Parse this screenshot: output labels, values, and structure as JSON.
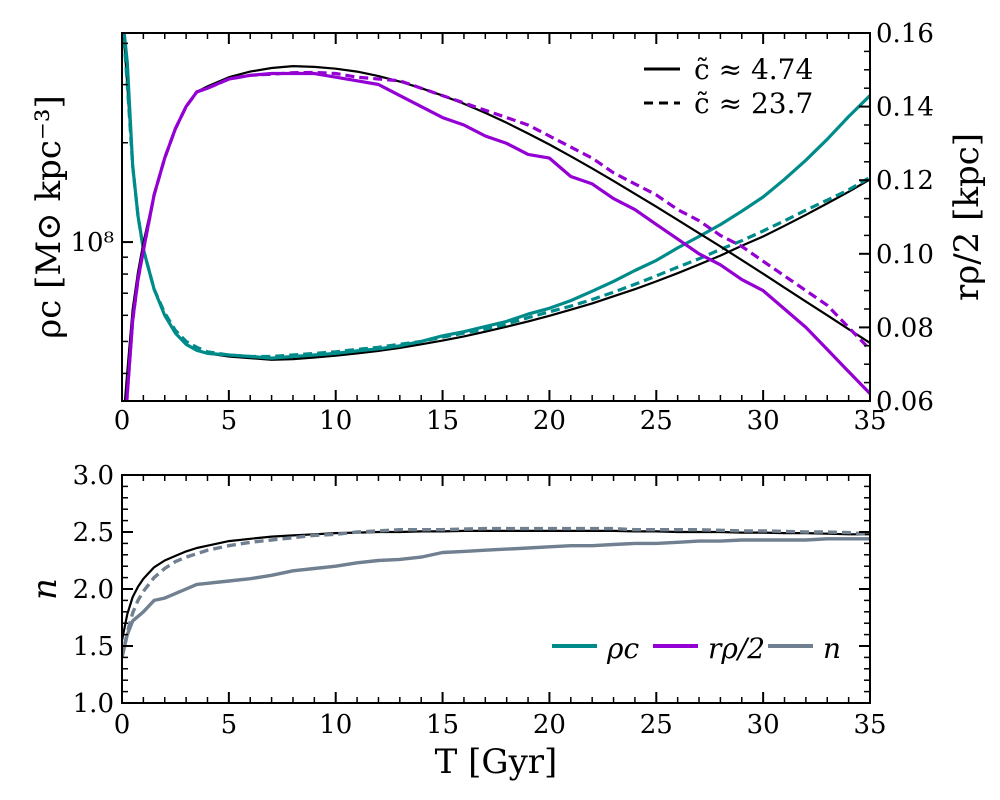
{
  "chart_data": [
    {
      "type": "line",
      "title": "",
      "xlabel": "",
      "xlim": [
        0,
        35
      ],
      "xticks": [
        "0",
        "5",
        "10",
        "15",
        "20",
        "25",
        "30",
        "35"
      ],
      "left_axis": {
        "label": "ρc [M⊙ kpc⁻³]",
        "scale": "log",
        "ylim": [
          33000000,
          430000000
        ],
        "tick_label": "10⁸"
      },
      "right_axis": {
        "label": "rρ/2 [kpc]",
        "ylim": [
          0.06,
          0.16
        ],
        "ticks": [
          "0.06",
          "0.08",
          "0.10",
          "0.12",
          "0.14",
          "0.16"
        ]
      },
      "legend": {
        "position": "top-right",
        "entries": [
          {
            "style": "solid",
            "label": "c̃ ≈ 4.74"
          },
          {
            "style": "dashed",
            "label": "c̃ ≈ 23.7"
          }
        ]
      },
      "x": [
        0,
        0.25,
        0.5,
        0.75,
        1,
        1.5,
        2,
        2.5,
        3,
        3.5,
        4,
        5,
        6,
        7,
        8,
        9,
        10,
        11,
        12,
        13,
        14,
        15,
        16,
        17,
        18,
        19,
        20,
        21,
        22,
        23,
        24,
        25,
        26,
        27,
        28,
        29,
        30,
        31,
        32,
        33,
        34,
        35
      ],
      "series": [
        {
          "name": "ρc model (c̃≈4.74)",
          "axis": "left",
          "color": "#000000",
          "style": "solid",
          "values": [
            500000000,
            300000000,
            170000000,
            120000000,
            95000000,
            72000000,
            60000000,
            53000000,
            49000000,
            47000000,
            46000000,
            45000000,
            44500000,
            44000000,
            44200000,
            44700000,
            45300000,
            46000000,
            46800000,
            47800000,
            49000000,
            50300000,
            51800000,
            53500000,
            55400000,
            57500000,
            59800000,
            62400000,
            65200000,
            68500000,
            72000000,
            76000000,
            80500000,
            85500000,
            91000000,
            97500000,
            104000000,
            112000000,
            121000000,
            131000000,
            142000000,
            155000000
          ]
        },
        {
          "name": "ρc (c̃≈4.74)",
          "axis": "left",
          "color": "#008b8b",
          "style": "solid",
          "values": [
            500000000,
            350000000,
            170000000,
            120000000,
            95000000,
            72000000,
            60000000,
            53000000,
            49000000,
            47000000,
            46000000,
            45500000,
            45000000,
            44500000,
            45000000,
            45500000,
            46000000,
            46800000,
            47500000,
            48500000,
            50000000,
            52000000,
            53500000,
            55500000,
            57500000,
            60500000,
            63000000,
            66500000,
            71000000,
            76000000,
            82000000,
            88000000,
            96000000,
            104000000,
            113000000,
            124000000,
            137000000,
            155000000,
            177000000,
            205000000,
            240000000,
            278000000
          ]
        },
        {
          "name": "ρc (c̃≈23.7)",
          "axis": "left",
          "color": "#008b8b",
          "style": "dashed",
          "values": [
            500000000,
            300000000,
            170000000,
            120000000,
            95000000,
            72000000,
            61000000,
            54000000,
            50000000,
            48000000,
            46500000,
            45500000,
            45000000,
            45000000,
            45500000,
            46000000,
            46500000,
            47300000,
            48000000,
            49000000,
            50000000,
            51500000,
            53000000,
            54500000,
            56500000,
            59000000,
            61500000,
            64000000,
            67000000,
            70500000,
            74500000,
            79000000,
            84000000,
            89000000,
            95000000,
            101000000,
            108000000,
            116000000,
            125000000,
            134000000,
            144000000,
            157000000
          ]
        },
        {
          "name": "rρ/2 model (c̃≈4.74)",
          "axis": "right",
          "color": "#000000",
          "style": "solid",
          "values": [
            0.05,
            0.068,
            0.085,
            0.095,
            0.103,
            0.116,
            0.126,
            0.134,
            0.14,
            0.144,
            0.1455,
            0.148,
            0.1495,
            0.1505,
            0.151,
            0.1508,
            0.1503,
            0.1495,
            0.1483,
            0.1468,
            0.145,
            0.143,
            0.1408,
            0.1383,
            0.1356,
            0.1327,
            0.1297,
            0.1265,
            0.1232,
            0.1198,
            0.1163,
            0.1128,
            0.1092,
            0.1056,
            0.102,
            0.0983,
            0.0946,
            0.0908,
            0.087,
            0.0833,
            0.0795,
            0.0758
          ]
        },
        {
          "name": "rρ/2 (c̃≈4.74)",
          "axis": "right",
          "color": "#9400d3",
          "style": "solid",
          "values": [
            0.04,
            0.062,
            0.082,
            0.093,
            0.101,
            0.116,
            0.126,
            0.134,
            0.14,
            0.144,
            0.145,
            0.1475,
            0.1485,
            0.149,
            0.149,
            0.149,
            0.148,
            0.147,
            0.146,
            0.143,
            0.14,
            0.137,
            0.135,
            0.132,
            0.13,
            0.127,
            0.126,
            0.121,
            0.119,
            0.115,
            0.112,
            0.108,
            0.104,
            0.1,
            0.097,
            0.093,
            0.09,
            0.085,
            0.08,
            0.074,
            0.068,
            0.062
          ]
        },
        {
          "name": "rρ/2 (c̃≈23.7)",
          "axis": "right",
          "color": "#9400d3",
          "style": "dashed",
          "values": [
            0.04,
            0.062,
            0.082,
            0.093,
            0.101,
            0.116,
            0.126,
            0.134,
            0.14,
            0.144,
            0.145,
            0.1475,
            0.1485,
            0.1488,
            0.1492,
            0.1493,
            0.149,
            0.148,
            0.1475,
            0.147,
            0.145,
            0.143,
            0.141,
            0.139,
            0.137,
            0.135,
            0.132,
            0.129,
            0.126,
            0.122,
            0.119,
            0.116,
            0.112,
            0.109,
            0.105,
            0.102,
            0.098,
            0.094,
            0.09,
            0.086,
            0.08,
            0.074
          ]
        }
      ]
    },
    {
      "type": "line",
      "title": "",
      "xlabel": "T [Gyr]",
      "ylabel": "n",
      "xlim": [
        0,
        35
      ],
      "ylim": [
        1.0,
        3.0
      ],
      "xticks": [
        "0",
        "5",
        "10",
        "15",
        "20",
        "25",
        "30",
        "35"
      ],
      "yticks": [
        "1.0",
        "1.5",
        "2.0",
        "2.5",
        "3.0"
      ],
      "legend": {
        "position": "lower-right",
        "entries": [
          {
            "label": "ρc",
            "color": "#008b8b"
          },
          {
            "label": "rρ/2",
            "color": "#9400d3"
          },
          {
            "label": "n",
            "color": "#708090"
          }
        ]
      },
      "x": [
        0,
        0.25,
        0.5,
        0.75,
        1,
        1.5,
        2,
        2.5,
        3,
        3.5,
        4,
        5,
        6,
        7,
        8,
        9,
        10,
        11,
        12,
        13,
        14,
        15,
        16,
        17,
        18,
        19,
        20,
        21,
        22,
        23,
        24,
        25,
        26,
        27,
        28,
        29,
        30,
        31,
        32,
        33,
        34,
        35
      ],
      "series": [
        {
          "name": "n model (c̃≈4.74)",
          "color": "#000000",
          "style": "solid",
          "values": [
            1.55,
            1.78,
            1.93,
            2.02,
            2.09,
            2.19,
            2.25,
            2.29,
            2.33,
            2.36,
            2.38,
            2.42,
            2.44,
            2.46,
            2.47,
            2.48,
            2.49,
            2.495,
            2.5,
            2.5,
            2.505,
            2.505,
            2.51,
            2.51,
            2.51,
            2.51,
            2.51,
            2.51,
            2.51,
            2.51,
            2.505,
            2.505,
            2.5,
            2.5,
            2.5,
            2.495,
            2.495,
            2.49,
            2.49,
            2.485,
            2.48,
            2.48
          ]
        },
        {
          "name": "n (c̃≈4.74)",
          "color": "#708090",
          "style": "solid",
          "values": [
            1.4,
            1.6,
            1.72,
            1.76,
            1.8,
            1.9,
            1.92,
            1.96,
            2.0,
            2.04,
            2.05,
            2.07,
            2.09,
            2.12,
            2.16,
            2.18,
            2.2,
            2.23,
            2.25,
            2.26,
            2.28,
            2.32,
            2.33,
            2.34,
            2.35,
            2.36,
            2.37,
            2.38,
            2.38,
            2.39,
            2.4,
            2.4,
            2.41,
            2.42,
            2.42,
            2.43,
            2.43,
            2.43,
            2.43,
            2.44,
            2.44,
            2.44
          ]
        },
        {
          "name": "n (c̃≈23.7)",
          "color": "#708090",
          "style": "dashed",
          "values": [
            1.4,
            1.62,
            1.79,
            1.9,
            1.98,
            2.1,
            2.18,
            2.24,
            2.28,
            2.31,
            2.34,
            2.38,
            2.41,
            2.43,
            2.45,
            2.47,
            2.48,
            2.5,
            2.51,
            2.52,
            2.52,
            2.52,
            2.525,
            2.53,
            2.53,
            2.53,
            2.53,
            2.53,
            2.53,
            2.53,
            2.52,
            2.52,
            2.52,
            2.52,
            2.515,
            2.51,
            2.51,
            2.505,
            2.5,
            2.5,
            2.495,
            2.48
          ]
        }
      ]
    }
  ]
}
